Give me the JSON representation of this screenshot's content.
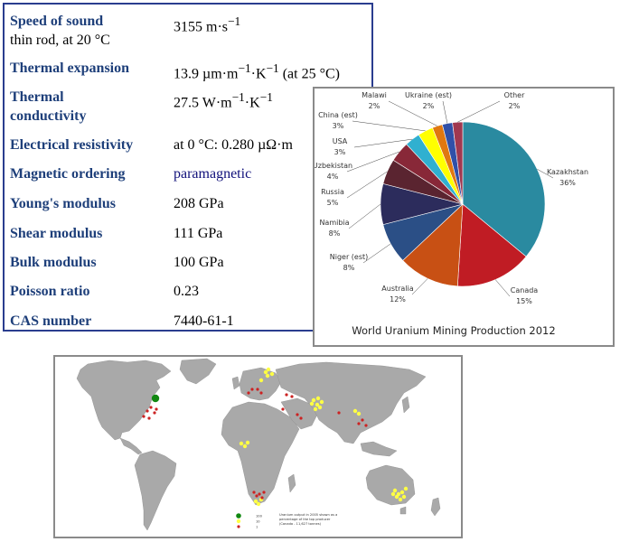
{
  "properties": [
    {
      "label": "Speed of sound",
      "sublabel": "thin rod, at 20 °C",
      "value_html": "3155 m·s<sup>−1</sup>"
    },
    {
      "label": "Thermal expansion",
      "value_html": "13.9 µm·m<sup>−1</sup>·K<sup>−1</sup> (at 25 °C)"
    },
    {
      "label": "Thermal",
      "label2": "conductivity",
      "value_html": "27.5 W·m<sup>−1</sup>·K<sup>−1</sup>"
    },
    {
      "label": "Electrical resistivity",
      "value_html": "at 0 °C: 0.280 µΩ·m"
    },
    {
      "label": "Magnetic ordering",
      "value_html": "<span class=\"blue\">paramagnetic</span>"
    },
    {
      "label": "Young's modulus",
      "value_html": "208 GPa"
    },
    {
      "label": "Shear modulus",
      "value_html": "111 GPa"
    },
    {
      "label": "Bulk modulus",
      "value_html": "100 GPa"
    },
    {
      "label": "Poisson ratio",
      "value_html": "0.23"
    },
    {
      "label": "CAS number",
      "value_html": "7440-61-1"
    }
  ],
  "chart_data": {
    "type": "pie",
    "title": "World Uranium Mining Production 2012",
    "slices": [
      {
        "name": "Kazakhstan",
        "value": 36,
        "label": "36%",
        "color": "#2a8aa0"
      },
      {
        "name": "Canada",
        "value": 15,
        "label": "15%",
        "color": "#c01c24"
      },
      {
        "name": "Australia",
        "value": 12,
        "label": "12%",
        "color": "#c85014"
      },
      {
        "name": "Niger (est)",
        "value": 8,
        "label": "8%",
        "color": "#2b4f86"
      },
      {
        "name": "Namibia",
        "value": 8,
        "label": "8%",
        "color": "#2c2c5c"
      },
      {
        "name": "Russia",
        "value": 5,
        "label": "5%",
        "color": "#5a2430"
      },
      {
        "name": "Uzbekistan",
        "value": 4,
        "label": "4%",
        "color": "#882838"
      },
      {
        "name": "USA",
        "value": 3,
        "label": "3%",
        "color": "#30b0d0"
      },
      {
        "name": "China (est)",
        "value": 3,
        "label": "3%",
        "color": "#ffff00"
      },
      {
        "name": "Malawi",
        "value": 2,
        "label": "2%",
        "color": "#e07810"
      },
      {
        "name": "Ukraine (est)",
        "value": 2,
        "label": "2%",
        "color": "#3050a8"
      },
      {
        "name": "Other",
        "value": 2,
        "label": "2%",
        "color": "#a03850"
      }
    ]
  },
  "map": {
    "legend_values": [
      "100",
      "10",
      "1"
    ],
    "legend_note_lines": [
      "Uranium output in 2005 shown as a",
      "percentage of the top producer",
      "(Canada - 11,627 tonnes)"
    ],
    "colors": {
      "ocean": "#ffffff",
      "land": "#a9a9a9",
      "large": "#118811",
      "medium": "#ffff44",
      "small": "#cc2222"
    }
  }
}
